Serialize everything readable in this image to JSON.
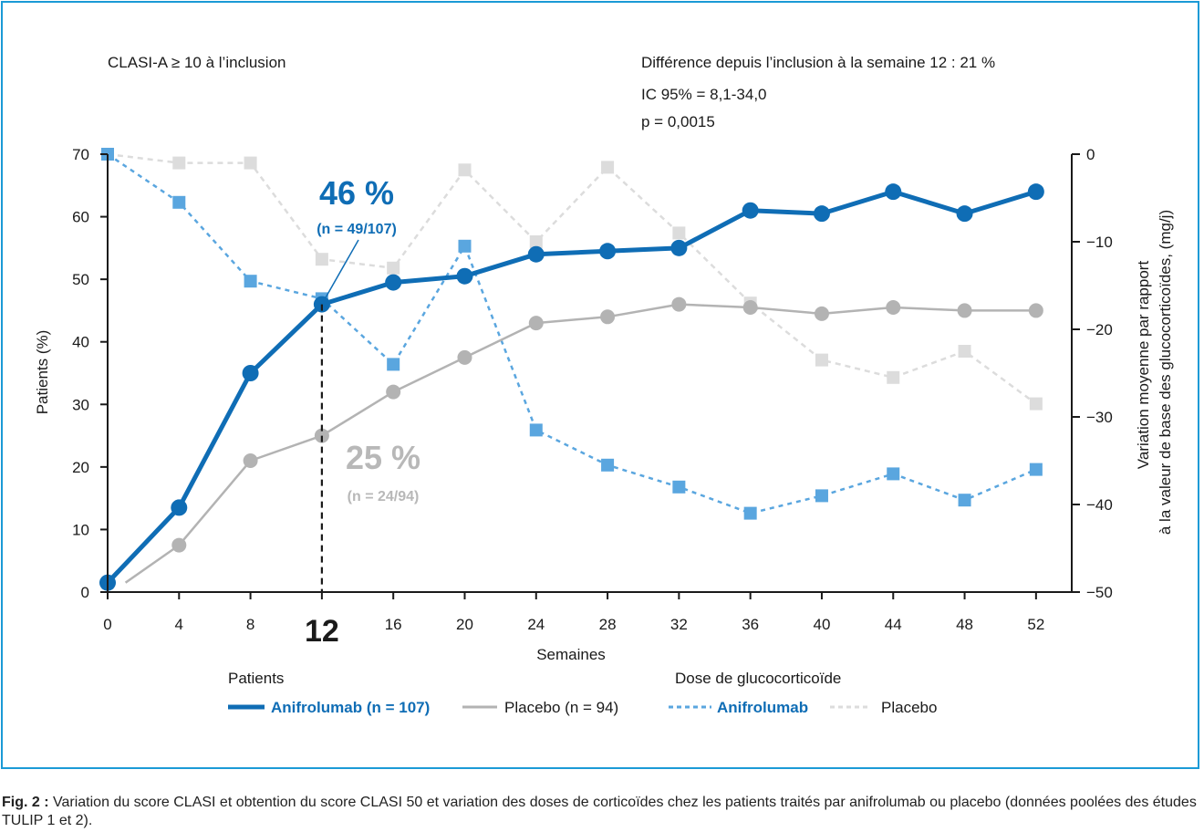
{
  "caption": {
    "label": "Fig. 2 :",
    "text": "Variation du score CLASI et obtention du score CLASI 50 et variation des doses de corticoïdes chez les patients traités par anifrolumab ou placebo (données poolées des études TULIP 1 et 2)."
  },
  "header": {
    "left": "CLASI-A ≥ 10 à l’inclusion",
    "right_line1": "Différence depuis l’inclusion à la semaine 12 : 21 %",
    "right_line2": "IC 95% = 8,1-34,0",
    "right_line3": "p = 0,0015"
  },
  "callouts": {
    "anifrolumab_pct": "46 %",
    "anifrolumab_n": "(n = 49/107)",
    "placebo_pct": "25 %",
    "placebo_n": "(n = 24/94)",
    "week_marker": "12"
  },
  "legend": {
    "patients_title": "Patients",
    "dose_title": "Dose de glucocorticoïde",
    "items": [
      "Anifrolumab (n = 107)",
      "Placebo (n = 94)",
      "Anifrolumab",
      "Placebo"
    ]
  },
  "colors": {
    "anifrolumab": "#0f6db5",
    "placebo": "#b3b3b3",
    "dose_anifrolumab": "#5aa6df",
    "dose_placebo": "#dcdcdc",
    "frame": "#1b9ad6"
  },
  "chart_data": {
    "type": "line",
    "xlabel": "Semaines",
    "ylabel": "Patients (%)",
    "y2label_line1": "Variation moyenne par rapport",
    "y2label_line2": "à la valeur de base des glucocorticoïdes, (mg/j)",
    "xlim": [
      0,
      54
    ],
    "ylim": [
      0,
      70
    ],
    "y2lim": [
      -50,
      0
    ],
    "xticks": [
      "0",
      "4",
      "8",
      "12",
      "16",
      "20",
      "24",
      "28",
      "32",
      "36",
      "40",
      "44",
      "48",
      "52"
    ],
    "yticks": [
      "0",
      "10",
      "20",
      "30",
      "40",
      "50",
      "60",
      "70"
    ],
    "y2ticks": [
      "0",
      "−10",
      "−20",
      "−30",
      "−40",
      "−50"
    ],
    "series": [
      {
        "name": "Anifrolumab (n = 107)",
        "axis": "left",
        "x": [
          0,
          4,
          8,
          12,
          16,
          20,
          24,
          28,
          32,
          36,
          40,
          44,
          48,
          52
        ],
        "values": [
          1.5,
          13.5,
          35,
          46,
          49.5,
          50.5,
          54,
          54.5,
          55,
          61,
          60.5,
          64,
          60.5,
          64
        ]
      },
      {
        "name": "Placebo (n = 94)",
        "axis": "left",
        "x": [
          1,
          4,
          8,
          12,
          16,
          20,
          24,
          28,
          32,
          36,
          40,
          44,
          48,
          52
        ],
        "values": [
          1.5,
          7.5,
          21,
          25,
          32,
          37.5,
          43,
          44,
          46,
          45.5,
          44.5,
          45.5,
          45,
          45
        ]
      },
      {
        "name": "Anifrolumab",
        "axis": "right",
        "x": [
          0,
          4,
          8,
          12,
          16,
          20,
          24,
          28,
          32,
          36,
          40,
          44,
          48,
          52
        ],
        "values": [
          0,
          -5.5,
          -14.5,
          -16.5,
          -24,
          -10.5,
          -31.5,
          -35.5,
          -38,
          -41,
          -39,
          -36.5,
          -39.5,
          -36
        ]
      },
      {
        "name": "Placebo",
        "axis": "right",
        "x": [
          0,
          4,
          8,
          12,
          16,
          20,
          24,
          28,
          32,
          36,
          40,
          44,
          48,
          52
        ],
        "values": [
          0,
          -1,
          -1,
          -12,
          -13,
          -1.8,
          -10,
          -1.5,
          -9,
          -17,
          -23.5,
          -25.5,
          -22.5,
          -28.5
        ]
      }
    ]
  }
}
